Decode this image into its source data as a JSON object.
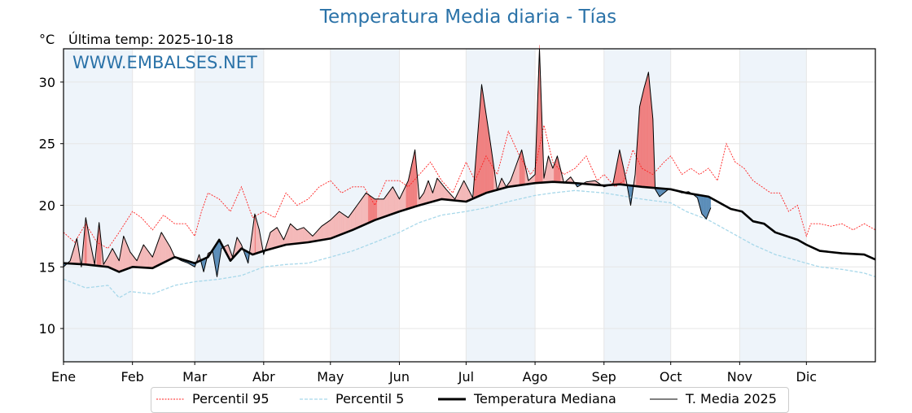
{
  "title": "Temperatura Media diaria - Tías",
  "unit": "°C",
  "last_temp_label": "Última temp: 2025-10-18",
  "watermark": "WWW.EMBALSES.NET",
  "colors": {
    "title": "#2a72a8",
    "p95": "#ff2020",
    "p5": "#a8d8ea",
    "median": "#000000",
    "above": "#f08080",
    "above_light": "#f4b8b8",
    "below": "#5b8db8",
    "band": "#eef4fa"
  },
  "chart_data": {
    "type": "line",
    "title": "Temperatura Media diaria - Tías",
    "xlabel": "",
    "ylabel": "°C",
    "ylim": [
      7.3,
      32.7
    ],
    "xlim": [
      0,
      365
    ],
    "yticks": [
      10,
      15,
      20,
      25,
      30
    ],
    "xtick_labels": [
      "Ene",
      "Feb",
      "Mar",
      "Abr",
      "May",
      "Jun",
      "Jul",
      "Ago",
      "Sep",
      "Oct",
      "Nov",
      "Dic"
    ],
    "xtick_days": [
      0,
      31,
      59,
      90,
      120,
      151,
      181,
      212,
      243,
      273,
      304,
      334
    ],
    "grid": true,
    "legend_position": "bottom",
    "series": [
      {
        "name": "Percentil 95",
        "style": "dotted-red",
        "x": [
          0,
          5,
          10,
          15,
          20,
          25,
          31,
          35,
          40,
          45,
          50,
          55,
          59,
          62,
          65,
          70,
          75,
          80,
          85,
          90,
          95,
          100,
          105,
          110,
          115,
          120,
          125,
          130,
          135,
          140,
          145,
          151,
          155,
          160,
          165,
          170,
          175,
          181,
          185,
          190,
          195,
          200,
          205,
          210,
          212,
          216,
          220,
          225,
          230,
          235,
          240,
          243,
          248,
          252,
          256,
          260,
          265,
          270,
          273,
          278,
          282,
          286,
          290,
          294,
          298,
          302,
          306,
          310,
          314,
          318,
          322,
          326,
          330,
          334,
          336,
          340,
          345,
          350,
          355,
          360,
          365
        ],
        "values": [
          17.8,
          17.0,
          18.5,
          17.0,
          16.5,
          17.8,
          19.5,
          19.0,
          18.0,
          19.2,
          18.5,
          18.5,
          17.5,
          19.5,
          21.0,
          20.5,
          19.5,
          21.5,
          19.0,
          19.5,
          19.0,
          21.0,
          20.0,
          20.5,
          21.5,
          22.0,
          21.0,
          21.5,
          21.5,
          20.0,
          22.0,
          22.0,
          21.5,
          22.5,
          23.5,
          22.0,
          21.0,
          23.5,
          22.0,
          24.0,
          22.5,
          26.0,
          24.0,
          22.5,
          23.0,
          26.5,
          23.5,
          22.5,
          23.0,
          24.0,
          22.0,
          22.5,
          21.5,
          22.0,
          24.5,
          23.0,
          22.5,
          23.5,
          24.0,
          22.5,
          23.0,
          22.5,
          23.0,
          22.0,
          25.0,
          23.5,
          23.0,
          22.0,
          21.5,
          21.0,
          21.0,
          19.5,
          20.0,
          17.5,
          18.5,
          18.5,
          18.3,
          18.5,
          18.0,
          18.5,
          18.0
        ]
      },
      {
        "name": "Percentil 5",
        "style": "dashed-lightblue",
        "x": [
          0,
          10,
          20,
          25,
          30,
          40,
          50,
          59,
          70,
          80,
          90,
          100,
          110,
          120,
          130,
          140,
          151,
          160,
          170,
          181,
          190,
          200,
          212,
          220,
          230,
          243,
          250,
          260,
          273,
          280,
          290,
          300,
          310,
          320,
          330,
          340,
          350,
          360,
          365
        ],
        "values": [
          14.0,
          13.3,
          13.5,
          12.5,
          13.0,
          12.8,
          13.5,
          13.8,
          14.0,
          14.3,
          15.0,
          15.2,
          15.3,
          15.8,
          16.3,
          17.0,
          17.8,
          18.6,
          19.2,
          19.5,
          19.8,
          20.3,
          20.8,
          21.0,
          21.2,
          21.0,
          20.8,
          20.5,
          20.2,
          19.5,
          18.8,
          17.8,
          16.8,
          16.0,
          15.5,
          15.0,
          14.8,
          14.5,
          14.2
        ]
      },
      {
        "name": "Temperatura Mediana",
        "style": "thick-black",
        "x": [
          0,
          10,
          20,
          25,
          31,
          40,
          50,
          59,
          65,
          70,
          75,
          80,
          85,
          90,
          100,
          110,
          120,
          130,
          140,
          151,
          160,
          170,
          181,
          190,
          200,
          212,
          220,
          230,
          243,
          250,
          260,
          273,
          280,
          290,
          300,
          305,
          310,
          315,
          320,
          330,
          334,
          340,
          350,
          360,
          365
        ],
        "values": [
          15.3,
          15.2,
          15.0,
          14.6,
          15.0,
          14.9,
          15.8,
          15.3,
          15.8,
          17.2,
          15.5,
          16.5,
          16.0,
          16.3,
          16.8,
          17.0,
          17.3,
          18.0,
          18.8,
          19.5,
          20.0,
          20.5,
          20.3,
          21.0,
          21.5,
          21.8,
          21.9,
          21.8,
          21.6,
          21.7,
          21.5,
          21.3,
          21.0,
          20.7,
          19.7,
          19.5,
          18.7,
          18.5,
          17.8,
          17.2,
          16.8,
          16.3,
          16.1,
          16.0,
          15.6
        ]
      },
      {
        "name": "T. Media 2025",
        "style": "thin-black",
        "x": [
          0,
          3,
          6,
          8,
          10,
          12,
          14,
          16,
          18,
          20,
          22,
          25,
          27,
          30,
          33,
          36,
          40,
          44,
          48,
          50,
          53,
          56,
          59,
          61,
          63,
          65,
          67,
          69,
          71,
          74,
          76,
          78,
          80,
          83,
          86,
          88,
          90,
          93,
          96,
          99,
          102,
          105,
          108,
          112,
          116,
          120,
          124,
          128,
          132,
          136,
          140,
          144,
          148,
          151,
          155,
          158,
          160,
          162,
          164,
          166,
          168,
          172,
          176,
          180,
          184,
          188,
          192,
          195,
          197,
          199,
          201,
          203,
          206,
          209,
          212,
          214,
          216,
          218,
          220,
          222,
          225,
          228,
          231,
          235,
          239,
          243,
          247,
          250,
          253,
          255,
          257,
          259,
          261,
          263,
          265,
          266,
          268,
          270,
          272,
          275,
          278,
          281,
          283,
          285,
          287,
          289,
          291
        ],
        "values": [
          15.0,
          15.5,
          17.3,
          15.0,
          19.0,
          17.0,
          15.2,
          18.6,
          15.2,
          15.8,
          16.5,
          15.5,
          17.5,
          16.2,
          15.5,
          16.8,
          15.8,
          17.8,
          16.6,
          15.8,
          15.5,
          15.3,
          15.0,
          16.0,
          14.6,
          16.1,
          16.3,
          14.2,
          16.5,
          16.8,
          15.8,
          17.4,
          16.8,
          15.3,
          19.3,
          18.0,
          16.0,
          17.8,
          18.2,
          17.2,
          18.5,
          18.0,
          18.2,
          17.5,
          18.3,
          18.8,
          19.5,
          19.0,
          20.0,
          21.0,
          20.5,
          20.5,
          21.5,
          20.5,
          22.0,
          24.5,
          20.5,
          21.0,
          22.0,
          21.0,
          22.2,
          21.3,
          20.5,
          22.0,
          20.6,
          29.8,
          25.0,
          21.2,
          22.2,
          21.5,
          22.0,
          23.0,
          24.5,
          22.0,
          22.5,
          33.0,
          22.2,
          24.0,
          23.0,
          24.0,
          21.8,
          22.3,
          21.5,
          21.9,
          22.0,
          21.5,
          21.7,
          24.5,
          22.0,
          20.0,
          22.5,
          28.0,
          29.5,
          30.8,
          27.0,
          21.3,
          20.7,
          21.0,
          21.3,
          21.2,
          21.0,
          21.1,
          20.9,
          20.6,
          19.3,
          18.9,
          19.8
        ]
      }
    ]
  },
  "legend": [
    {
      "label": "Percentil 95"
    },
    {
      "label": "Percentil 5"
    },
    {
      "label": "Temperatura Mediana"
    },
    {
      "label": "T. Media 2025"
    }
  ]
}
